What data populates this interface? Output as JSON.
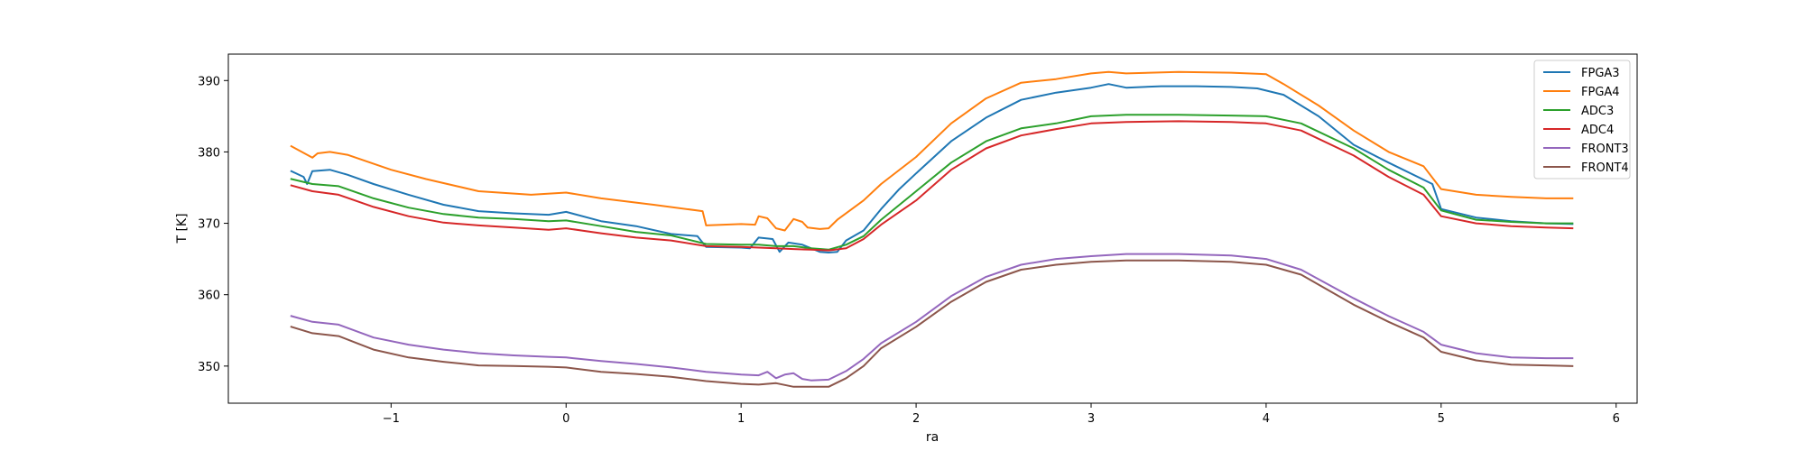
{
  "chart_data": {
    "type": "line",
    "title": "",
    "xlabel": "ra",
    "ylabel": "T [K]",
    "xlim": [
      -1.93,
      6.12
    ],
    "ylim": [
      344.8,
      393.7
    ],
    "xticks": [
      -1,
      0,
      1,
      2,
      3,
      4,
      5,
      6
    ],
    "xtick_labels": [
      "−1",
      "0",
      "1",
      "2",
      "3",
      "4",
      "5",
      "6"
    ],
    "yticks": [
      350,
      360,
      370,
      380,
      390
    ],
    "ytick_labels": [
      "350",
      "360",
      "370",
      "380",
      "390"
    ],
    "grid": false,
    "legend_position": "upper right",
    "series": [
      {
        "name": "FPGA3",
        "color": "#1f77b4",
        "x": [
          -1.57,
          -1.5,
          -1.48,
          -1.45,
          -1.35,
          -1.25,
          -1.1,
          -0.9,
          -0.7,
          -0.5,
          -0.3,
          -0.1,
          0.0,
          0.2,
          0.4,
          0.6,
          0.75,
          0.8,
          1.0,
          1.05,
          1.1,
          1.18,
          1.22,
          1.27,
          1.35,
          1.45,
          1.5,
          1.55,
          1.6,
          1.7,
          1.8,
          1.9,
          2.0,
          2.2,
          2.4,
          2.6,
          2.8,
          3.0,
          3.1,
          3.2,
          3.4,
          3.6,
          3.8,
          3.95,
          4.1,
          4.3,
          4.5,
          4.7,
          4.95,
          5.0,
          5.2,
          5.4,
          5.6,
          5.75
        ],
        "y": [
          377.3,
          376.5,
          375.5,
          377.3,
          377.5,
          376.8,
          375.5,
          374.0,
          372.6,
          371.7,
          371.4,
          371.2,
          371.6,
          370.3,
          369.6,
          368.5,
          368.2,
          366.7,
          366.6,
          366.5,
          368.0,
          367.8,
          366.0,
          367.3,
          367.0,
          366.0,
          365.9,
          366.0,
          367.6,
          369.0,
          372.0,
          374.7,
          377.0,
          381.5,
          384.8,
          387.3,
          388.3,
          389.0,
          389.5,
          389.0,
          389.2,
          389.2,
          389.1,
          388.9,
          388.0,
          385.0,
          381.0,
          378.5,
          375.5,
          372.0,
          370.8,
          370.3,
          370.0,
          369.9
        ]
      },
      {
        "name": "FPGA4",
        "color": "#ff7f0e",
        "x": [
          -1.57,
          -1.45,
          -1.42,
          -1.35,
          -1.25,
          -1.0,
          -0.8,
          -0.5,
          -0.2,
          0.0,
          0.2,
          0.5,
          0.78,
          0.8,
          1.0,
          1.08,
          1.1,
          1.15,
          1.2,
          1.25,
          1.3,
          1.35,
          1.38,
          1.45,
          1.5,
          1.55,
          1.7,
          1.8,
          2.0,
          2.2,
          2.4,
          2.6,
          2.8,
          3.0,
          3.1,
          3.2,
          3.5,
          3.8,
          4.0,
          4.1,
          4.3,
          4.5,
          4.7,
          4.9,
          5.0,
          5.2,
          5.4,
          5.6,
          5.75
        ],
        "y": [
          380.8,
          379.2,
          379.8,
          380.0,
          379.6,
          377.5,
          376.2,
          374.5,
          374.0,
          374.3,
          373.5,
          372.6,
          371.7,
          369.7,
          369.9,
          369.8,
          371.0,
          370.7,
          369.3,
          369.0,
          370.6,
          370.2,
          369.4,
          369.2,
          369.3,
          370.5,
          373.2,
          375.5,
          379.3,
          384.0,
          387.5,
          389.7,
          390.2,
          391.0,
          391.2,
          391.0,
          391.2,
          391.1,
          390.9,
          389.5,
          386.5,
          383.0,
          380.0,
          378.0,
          374.8,
          374.0,
          373.7,
          373.5,
          373.5
        ]
      },
      {
        "name": "ADC3",
        "color": "#2ca02c",
        "x": [
          -1.57,
          -1.45,
          -1.3,
          -1.1,
          -0.9,
          -0.7,
          -0.5,
          -0.3,
          -0.1,
          0.0,
          0.2,
          0.4,
          0.6,
          0.8,
          1.0,
          1.1,
          1.2,
          1.3,
          1.4,
          1.5,
          1.6,
          1.7,
          1.8,
          2.0,
          2.2,
          2.4,
          2.6,
          2.8,
          3.0,
          3.2,
          3.5,
          3.8,
          4.0,
          4.2,
          4.5,
          4.7,
          4.9,
          5.0,
          5.2,
          5.4,
          5.6,
          5.75
        ],
        "y": [
          376.2,
          375.5,
          375.2,
          373.5,
          372.2,
          371.3,
          370.8,
          370.6,
          370.3,
          370.4,
          369.6,
          368.8,
          368.3,
          367.1,
          367.0,
          367.0,
          366.8,
          366.8,
          366.5,
          366.3,
          367.0,
          368.2,
          370.5,
          374.5,
          378.5,
          381.5,
          383.3,
          384.0,
          385.0,
          385.2,
          385.2,
          385.1,
          385.0,
          384.0,
          380.5,
          377.5,
          375.0,
          371.8,
          370.5,
          370.2,
          370.0,
          370.0
        ]
      },
      {
        "name": "ADC4",
        "color": "#d62728",
        "x": [
          -1.57,
          -1.45,
          -1.3,
          -1.1,
          -0.9,
          -0.7,
          -0.5,
          -0.3,
          -0.1,
          0.0,
          0.2,
          0.4,
          0.6,
          0.8,
          1.0,
          1.1,
          1.2,
          1.3,
          1.4,
          1.5,
          1.6,
          1.7,
          1.8,
          2.0,
          2.2,
          2.4,
          2.6,
          2.8,
          3.0,
          3.2,
          3.5,
          3.8,
          4.0,
          4.2,
          4.5,
          4.7,
          4.9,
          5.0,
          5.2,
          5.4,
          5.6,
          5.75
        ],
        "y": [
          375.3,
          374.5,
          374.0,
          372.3,
          371.0,
          370.1,
          369.7,
          369.4,
          369.1,
          369.3,
          368.6,
          368.0,
          367.6,
          366.8,
          366.7,
          366.6,
          366.5,
          366.4,
          366.3,
          366.2,
          366.5,
          367.8,
          369.8,
          373.2,
          377.5,
          380.5,
          382.3,
          383.2,
          384.0,
          384.2,
          384.3,
          384.2,
          384.0,
          383.0,
          379.5,
          376.5,
          374.0,
          371.0,
          370.0,
          369.6,
          369.4,
          369.3
        ]
      },
      {
        "name": "FRONT3",
        "color": "#9467bd",
        "x": [
          -1.57,
          -1.45,
          -1.3,
          -1.1,
          -0.9,
          -0.7,
          -0.5,
          -0.3,
          -0.1,
          0.0,
          0.2,
          0.4,
          0.6,
          0.8,
          1.0,
          1.1,
          1.15,
          1.2,
          1.25,
          1.3,
          1.35,
          1.4,
          1.5,
          1.6,
          1.7,
          1.8,
          2.0,
          2.2,
          2.4,
          2.6,
          2.8,
          3.0,
          3.2,
          3.5,
          3.8,
          4.0,
          4.2,
          4.5,
          4.7,
          4.9,
          5.0,
          5.2,
          5.4,
          5.6,
          5.75
        ],
        "y": [
          357.0,
          356.2,
          355.8,
          354.0,
          353.0,
          352.3,
          351.8,
          351.5,
          351.3,
          351.2,
          350.7,
          350.3,
          349.8,
          349.2,
          348.8,
          348.7,
          349.2,
          348.3,
          348.8,
          349.0,
          348.2,
          348.0,
          348.1,
          349.3,
          351.0,
          353.2,
          356.2,
          359.8,
          362.5,
          364.2,
          365.0,
          365.4,
          365.7,
          365.7,
          365.5,
          365.0,
          363.5,
          359.5,
          357.0,
          354.8,
          353.0,
          351.8,
          351.2,
          351.1,
          351.1
        ]
      },
      {
        "name": "FRONT4",
        "color": "#8c564b",
        "x": [
          -1.57,
          -1.45,
          -1.3,
          -1.1,
          -0.9,
          -0.7,
          -0.5,
          -0.3,
          -0.1,
          0.0,
          0.2,
          0.4,
          0.6,
          0.8,
          1.0,
          1.1,
          1.2,
          1.3,
          1.4,
          1.5,
          1.6,
          1.7,
          1.8,
          2.0,
          2.2,
          2.4,
          2.6,
          2.8,
          3.0,
          3.2,
          3.5,
          3.8,
          4.0,
          4.2,
          4.5,
          4.7,
          4.9,
          5.0,
          5.2,
          5.4,
          5.6,
          5.75
        ],
        "y": [
          355.5,
          354.6,
          354.2,
          352.3,
          351.2,
          350.6,
          350.1,
          350.0,
          349.9,
          349.8,
          349.2,
          348.9,
          348.5,
          347.9,
          347.5,
          347.4,
          347.6,
          347.1,
          347.1,
          347.1,
          348.3,
          350.0,
          352.5,
          355.5,
          359.0,
          361.8,
          363.5,
          364.2,
          364.6,
          364.8,
          364.8,
          364.6,
          364.2,
          362.8,
          358.6,
          356.2,
          354.0,
          352.0,
          350.8,
          350.2,
          350.1,
          350.0
        ]
      }
    ]
  }
}
